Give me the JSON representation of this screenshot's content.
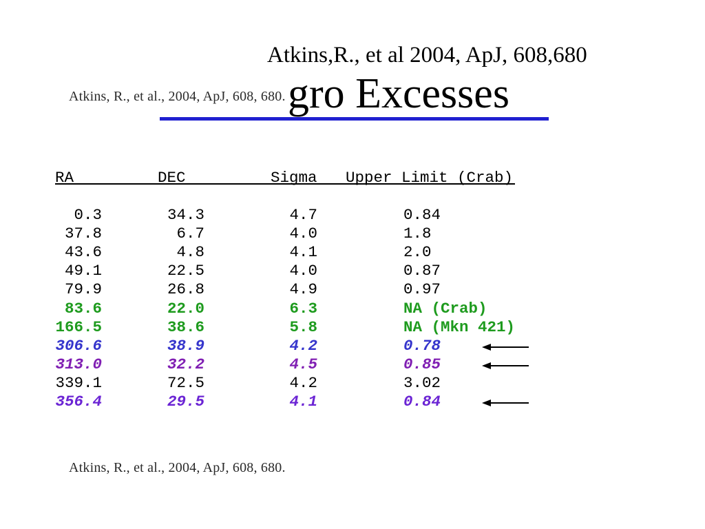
{
  "slide": {
    "citation_top": "Atkins,R., et al 2004, ApJ, 608,680",
    "title": "gro Excesses",
    "citation_inset": "Atkins, R., et al., 2004, ApJ, 608, 680.",
    "citation_bottom": "Atkins, R., et al., 2004, ApJ, 608, 680."
  },
  "colors": {
    "title_underline": "#2020d0",
    "normal": "#000000",
    "green": "#1e9b1e",
    "blue": "#3535cc",
    "purple": "#801fb3",
    "violet": "#6b24d4"
  },
  "table": {
    "headers": {
      "ra": "RA",
      "dec": "DEC",
      "sigma": "Sigma",
      "upper_limit": "Upper Limit (Crab)"
    },
    "rows": [
      {
        "ra": "0.3",
        "dec": "34.3",
        "sigma": "4.7",
        "upper_limit": "0.84",
        "style": "normal",
        "arrow": false
      },
      {
        "ra": "37.8",
        "dec": "6.7",
        "sigma": "4.0",
        "upper_limit": "1.8",
        "style": "normal",
        "arrow": false
      },
      {
        "ra": "43.6",
        "dec": "4.8",
        "sigma": "4.1",
        "upper_limit": "2.0",
        "style": "normal",
        "arrow": false
      },
      {
        "ra": "49.1",
        "dec": "22.5",
        "sigma": "4.0",
        "upper_limit": "0.87",
        "style": "normal",
        "arrow": false
      },
      {
        "ra": "79.9",
        "dec": "26.8",
        "sigma": "4.9",
        "upper_limit": "0.97",
        "style": "normal",
        "arrow": false
      },
      {
        "ra": "83.6",
        "dec": "22.0",
        "sigma": "6.3",
        "upper_limit": "NA (Crab)",
        "style": "green",
        "arrow": false
      },
      {
        "ra": "166.5",
        "dec": "38.6",
        "sigma": "5.8",
        "upper_limit": "NA (Mkn 421)",
        "style": "green",
        "arrow": false
      },
      {
        "ra": "306.6",
        "dec": "38.9",
        "sigma": "4.2",
        "upper_limit": "0.78",
        "style": "blue",
        "arrow": true
      },
      {
        "ra": "313.0",
        "dec": "32.2",
        "sigma": "4.5",
        "upper_limit": "0.85",
        "style": "purple",
        "arrow": true
      },
      {
        "ra": "339.1",
        "dec": "72.5",
        "sigma": "4.2",
        "upper_limit": "3.02",
        "style": "normal",
        "arrow": false
      },
      {
        "ra": "356.4",
        "dec": "29.5",
        "sigma": "4.1",
        "upper_limit": "0.84",
        "style": "violet",
        "arrow": true
      }
    ]
  }
}
